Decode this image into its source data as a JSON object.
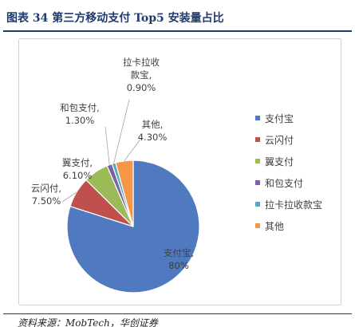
{
  "figure": {
    "title": "图表 34   第三方移动支付 Top5 安装量占比",
    "source": "资料来源：MobTech，华创证券"
  },
  "chart_data": {
    "type": "pie",
    "title": "",
    "slices": [
      {
        "name": "支付宝",
        "value": 80,
        "label_value": "80%",
        "color": "#4f7ac0"
      },
      {
        "name": "云闪付",
        "value": 7.5,
        "label_value": "7.50%",
        "color": "#c0504d"
      },
      {
        "name": "翼支付",
        "value": 6.1,
        "label_value": "6.10%",
        "color": "#9bbb59"
      },
      {
        "name": "和包支付",
        "value": 1.3,
        "label_value": "1.30%",
        "color": "#7e5fa6"
      },
      {
        "name": "拉卡拉收款宝",
        "value": 0.9,
        "label_value": "0.90%",
        "color": "#4bacc6"
      },
      {
        "name": "其他",
        "value": 4.3,
        "label_value": "4.30%",
        "color": "#f79646"
      }
    ],
    "legend_position": "right"
  }
}
